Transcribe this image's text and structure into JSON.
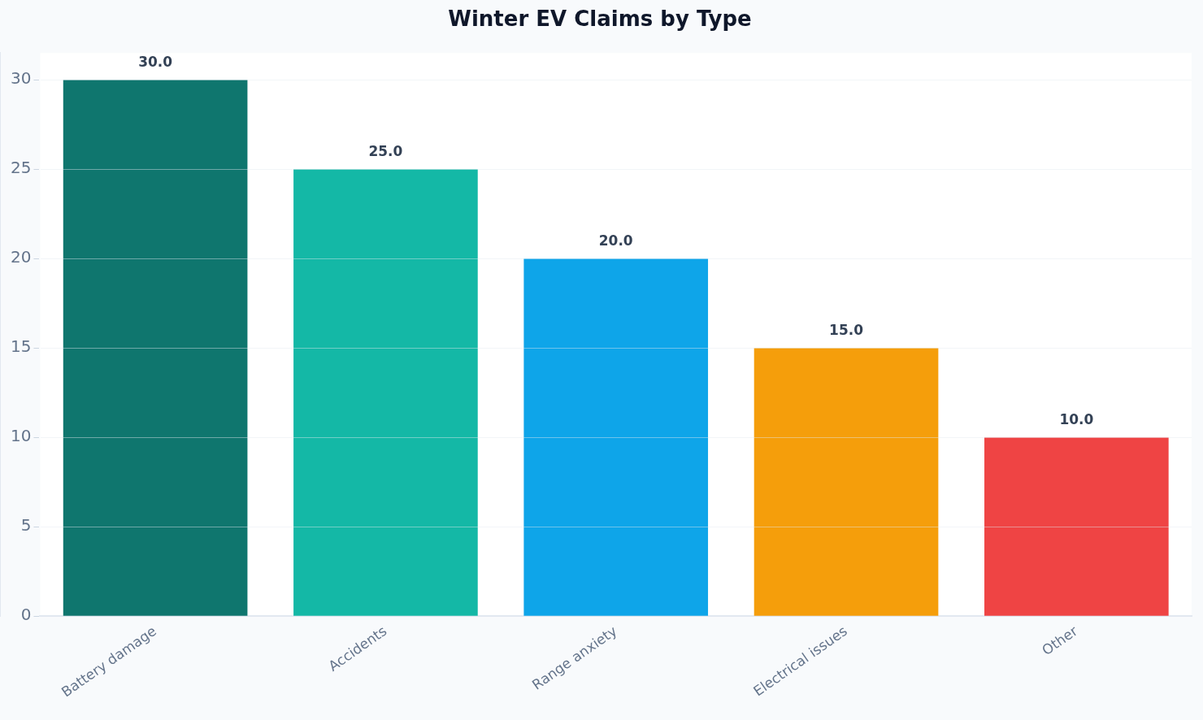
{
  "chart_data": {
    "type": "bar",
    "title": "Winter EV Claims by Type",
    "categories": [
      "Battery damage",
      "Accidents",
      "Range anxiety",
      "Electrical issues",
      "Other"
    ],
    "values": [
      30,
      25,
      20,
      15,
      10
    ],
    "colors": [
      "#0f766e",
      "#14b8a6",
      "#0ea5e9",
      "#f59e0b",
      "#ef4444"
    ],
    "value_labels": [
      "30.0",
      "25.0",
      "20.0",
      "15.0",
      "10.0"
    ],
    "ylim": [
      0,
      31.5
    ],
    "yticks": [
      0,
      5,
      10,
      15,
      20,
      25,
      30
    ],
    "grid": "y",
    "legend": false
  }
}
